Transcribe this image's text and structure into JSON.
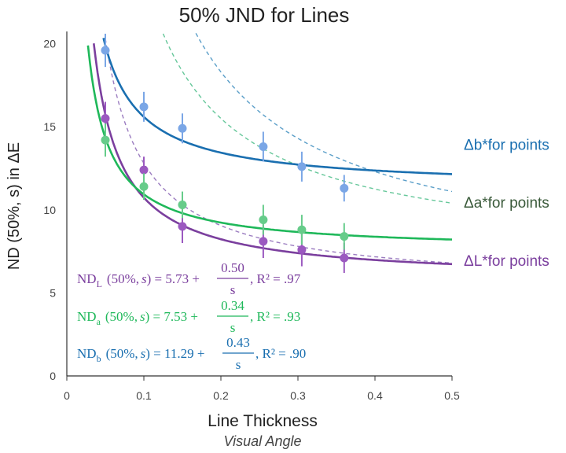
{
  "chart_data": {
    "type": "scatter",
    "title": "50% JND for Lines",
    "xlabel": "Line Thickness",
    "xlabel_sub": "Visual Angle",
    "ylabel": "ND (50%, s) in ΔE",
    "xlim": [
      0,
      0.5
    ],
    "ylim": [
      0,
      20.5
    ],
    "x_ticks": [
      0,
      0.1,
      0.2,
      0.3,
      0.4,
      0.5
    ],
    "x_tick_labels": [
      "0",
      "0.1",
      "0.2",
      "0.3",
      "0.4",
      "0.5"
    ],
    "y_ticks": [
      0,
      5,
      10,
      15,
      20
    ],
    "y_tick_labels": [
      "0",
      "5",
      "10",
      "15",
      "20"
    ],
    "grid": false,
    "series": [
      {
        "id": "L",
        "color": "#7b3f9e",
        "marker_color": "#9b59c0",
        "points": [
          {
            "x": 0.05,
            "y": 15.5,
            "err": 1.0
          },
          {
            "x": 0.1,
            "y": 12.4,
            "err": 0.8
          },
          {
            "x": 0.15,
            "y": 9.0,
            "err": 1.0
          },
          {
            "x": 0.255,
            "y": 8.1,
            "err": 1.0
          },
          {
            "x": 0.305,
            "y": 7.6,
            "err": 1.0
          },
          {
            "x": 0.36,
            "y": 7.1,
            "err": 0.9
          }
        ],
        "fit": {
          "a": 5.73,
          "b": 0.5,
          "R2": 0.97
        },
        "equation": {
          "lhs_main": "ND",
          "lhs_sub": "L",
          "lhs_rest": "(50%,",
          "var": "s",
          "const": "5.73",
          "num": "0.50",
          "den": "s",
          "r2_text": ", R² = .97"
        }
      },
      {
        "id": "a",
        "color": "#1fb85a",
        "marker_color": "#66cc8a",
        "points": [
          {
            "x": 0.05,
            "y": 14.2,
            "err": 1.0
          },
          {
            "x": 0.1,
            "y": 11.4,
            "err": 0.8
          },
          {
            "x": 0.15,
            "y": 10.3,
            "err": 0.8
          },
          {
            "x": 0.255,
            "y": 9.4,
            "err": 0.9
          },
          {
            "x": 0.305,
            "y": 8.8,
            "err": 0.9
          },
          {
            "x": 0.36,
            "y": 8.4,
            "err": 0.8
          }
        ],
        "fit": {
          "a": 7.53,
          "b": 0.34,
          "R2": 0.93
        },
        "equation": {
          "lhs_main": "ND",
          "lhs_sub": "a",
          "lhs_rest": "(50%,",
          "var": "s",
          "const": "7.53",
          "num": "0.34",
          "den": "s",
          "r2_text": ", R² = .93"
        }
      },
      {
        "id": "b",
        "color": "#1a6fb0",
        "marker_color": "#7aa6e6",
        "points": [
          {
            "x": 0.05,
            "y": 19.6,
            "err": 1.0
          },
          {
            "x": 0.1,
            "y": 16.2,
            "err": 0.9
          },
          {
            "x": 0.15,
            "y": 14.9,
            "err": 0.9
          },
          {
            "x": 0.255,
            "y": 13.8,
            "err": 0.9
          },
          {
            "x": 0.305,
            "y": 12.6,
            "err": 0.9
          },
          {
            "x": 0.36,
            "y": 11.3,
            "err": 0.8
          }
        ],
        "fit": {
          "a": 11.29,
          "b": 0.43,
          "R2": 0.9
        },
        "equation": {
          "lhs_main": "ND",
          "lhs_sub": "b",
          "lhs_rest": "(50%,",
          "var": "s",
          "const": "11.29",
          "num": "0.43",
          "den": "s",
          "r2_text": ", R² = .90"
        }
      }
    ],
    "reference_curves": [
      {
        "label": "ΔL*for points",
        "color": "#9b7cc0",
        "a": 5.3,
        "b": 0.75,
        "label_y": 7.0,
        "label_color": "#7b3f9e"
      },
      {
        "label": "Δa*for points",
        "color": "#66c79a",
        "a": 7.0,
        "b": 1.7,
        "label_y": 10.5,
        "label_color": "#3a5a3a"
      },
      {
        "label": "Δb*for points",
        "color": "#5a9ec8",
        "a": 6.3,
        "b": 2.4,
        "label_y": 14.0,
        "label_color": "#1a6fb0"
      }
    ]
  }
}
